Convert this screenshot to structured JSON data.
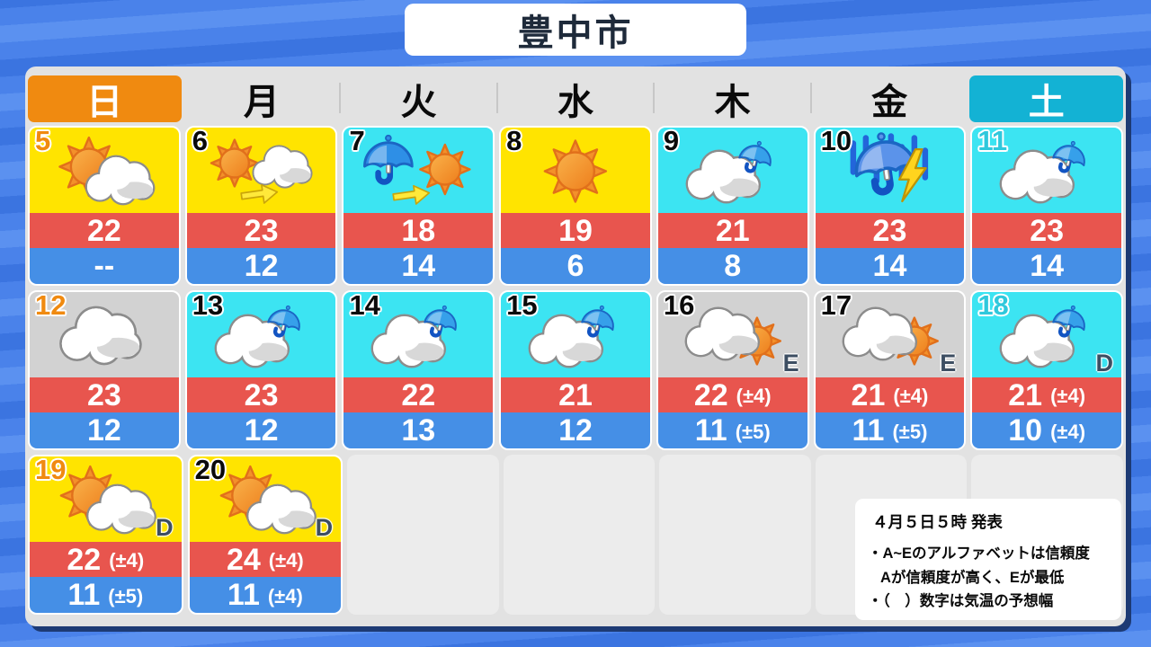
{
  "title": "豊中市",
  "weekdays": [
    {
      "label": "日",
      "type": "sunday"
    },
    {
      "label": "月",
      "type": "plain"
    },
    {
      "label": "火",
      "type": "plain"
    },
    {
      "label": "水",
      "type": "plain"
    },
    {
      "label": "木",
      "type": "plain"
    },
    {
      "label": "金",
      "type": "plain"
    },
    {
      "label": "土",
      "type": "saturday"
    }
  ],
  "cells": [
    {
      "date": "5",
      "day": "sunday",
      "icon": "sun-cloud",
      "bg": "yellow",
      "reliability": "",
      "high": "22",
      "high_range": "",
      "low": "--",
      "low_range": ""
    },
    {
      "date": "6",
      "day": "weekday",
      "icon": "sun-then-cloud",
      "bg": "yellow",
      "reliability": "",
      "high": "23",
      "high_range": "",
      "low": "12",
      "low_range": ""
    },
    {
      "date": "7",
      "day": "weekday",
      "icon": "rain-then-sun",
      "bg": "cyan",
      "reliability": "",
      "high": "18",
      "high_range": "",
      "low": "14",
      "low_range": ""
    },
    {
      "date": "8",
      "day": "weekday",
      "icon": "sun",
      "bg": "yellow",
      "reliability": "",
      "high": "19",
      "high_range": "",
      "low": "6",
      "low_range": ""
    },
    {
      "date": "9",
      "day": "weekday",
      "icon": "cloud-umbrella",
      "bg": "cyan",
      "reliability": "",
      "high": "21",
      "high_range": "",
      "low": "8",
      "low_range": ""
    },
    {
      "date": "10",
      "day": "weekday",
      "icon": "storm",
      "bg": "cyan",
      "reliability": "",
      "high": "23",
      "high_range": "",
      "low": "14",
      "low_range": ""
    },
    {
      "date": "11",
      "day": "saturday",
      "icon": "cloud-umbrella",
      "bg": "cyan",
      "reliability": "",
      "high": "23",
      "high_range": "",
      "low": "14",
      "low_range": ""
    },
    {
      "date": "12",
      "day": "sunday",
      "icon": "cloud",
      "bg": "gray",
      "reliability": "",
      "high": "23",
      "high_range": "",
      "low": "12",
      "low_range": ""
    },
    {
      "date": "13",
      "day": "weekday",
      "icon": "cloud-umbrella",
      "bg": "cyan",
      "reliability": "",
      "high": "23",
      "high_range": "",
      "low": "12",
      "low_range": ""
    },
    {
      "date": "14",
      "day": "weekday",
      "icon": "cloud-umbrella",
      "bg": "cyan",
      "reliability": "",
      "high": "22",
      "high_range": "",
      "low": "13",
      "low_range": ""
    },
    {
      "date": "15",
      "day": "weekday",
      "icon": "cloud-umbrella",
      "bg": "cyan",
      "reliability": "",
      "high": "21",
      "high_range": "",
      "low": "12",
      "low_range": ""
    },
    {
      "date": "16",
      "day": "weekday",
      "icon": "cloud-sun",
      "bg": "gray",
      "reliability": "E",
      "high": "22",
      "high_range": "(±4)",
      "low": "11",
      "low_range": "(±5)"
    },
    {
      "date": "17",
      "day": "weekday",
      "icon": "cloud-sun",
      "bg": "gray",
      "reliability": "E",
      "high": "21",
      "high_range": "(±4)",
      "low": "11",
      "low_range": "(±5)"
    },
    {
      "date": "18",
      "day": "saturday",
      "icon": "cloud-umbrella",
      "bg": "cyan",
      "reliability": "D",
      "high": "21",
      "high_range": "(±4)",
      "low": "10",
      "low_range": "(±4)"
    },
    {
      "date": "19",
      "day": "sunday",
      "icon": "sun-cloud",
      "bg": "yellow",
      "reliability": "D",
      "high": "22",
      "high_range": "(±4)",
      "low": "11",
      "low_range": "(±5)"
    },
    {
      "date": "20",
      "day": "weekday",
      "icon": "sun-cloud",
      "bg": "yellow",
      "reliability": "D",
      "high": "24",
      "high_range": "(±4)",
      "low": "11",
      "low_range": "(±4)"
    }
  ],
  "rows": [
    7,
    7,
    2
  ],
  "empty_cells_last_row": 5,
  "announcement": {
    "issued": "４月５日５時 発表",
    "lines": [
      "・A~Eのアルファベットは信頼度",
      "Aが信頼度が高く、Eが最低",
      "・（　）数字は気温の予想幅"
    ]
  },
  "colors": {
    "sunny_bg": "#ffe400",
    "rainy_bg": "#3ce4f2",
    "cloudy_bg": "#d2d2d2",
    "high_temp_bar": "#e8554e",
    "low_temp_bar": "#458fe6",
    "sunday_accent": "#f08a10",
    "saturday_accent": "#13b2d4",
    "saturday_date": "#2fc8dc",
    "background_blue": "#4a82ea",
    "panel_gray": "#e2e2e2"
  }
}
